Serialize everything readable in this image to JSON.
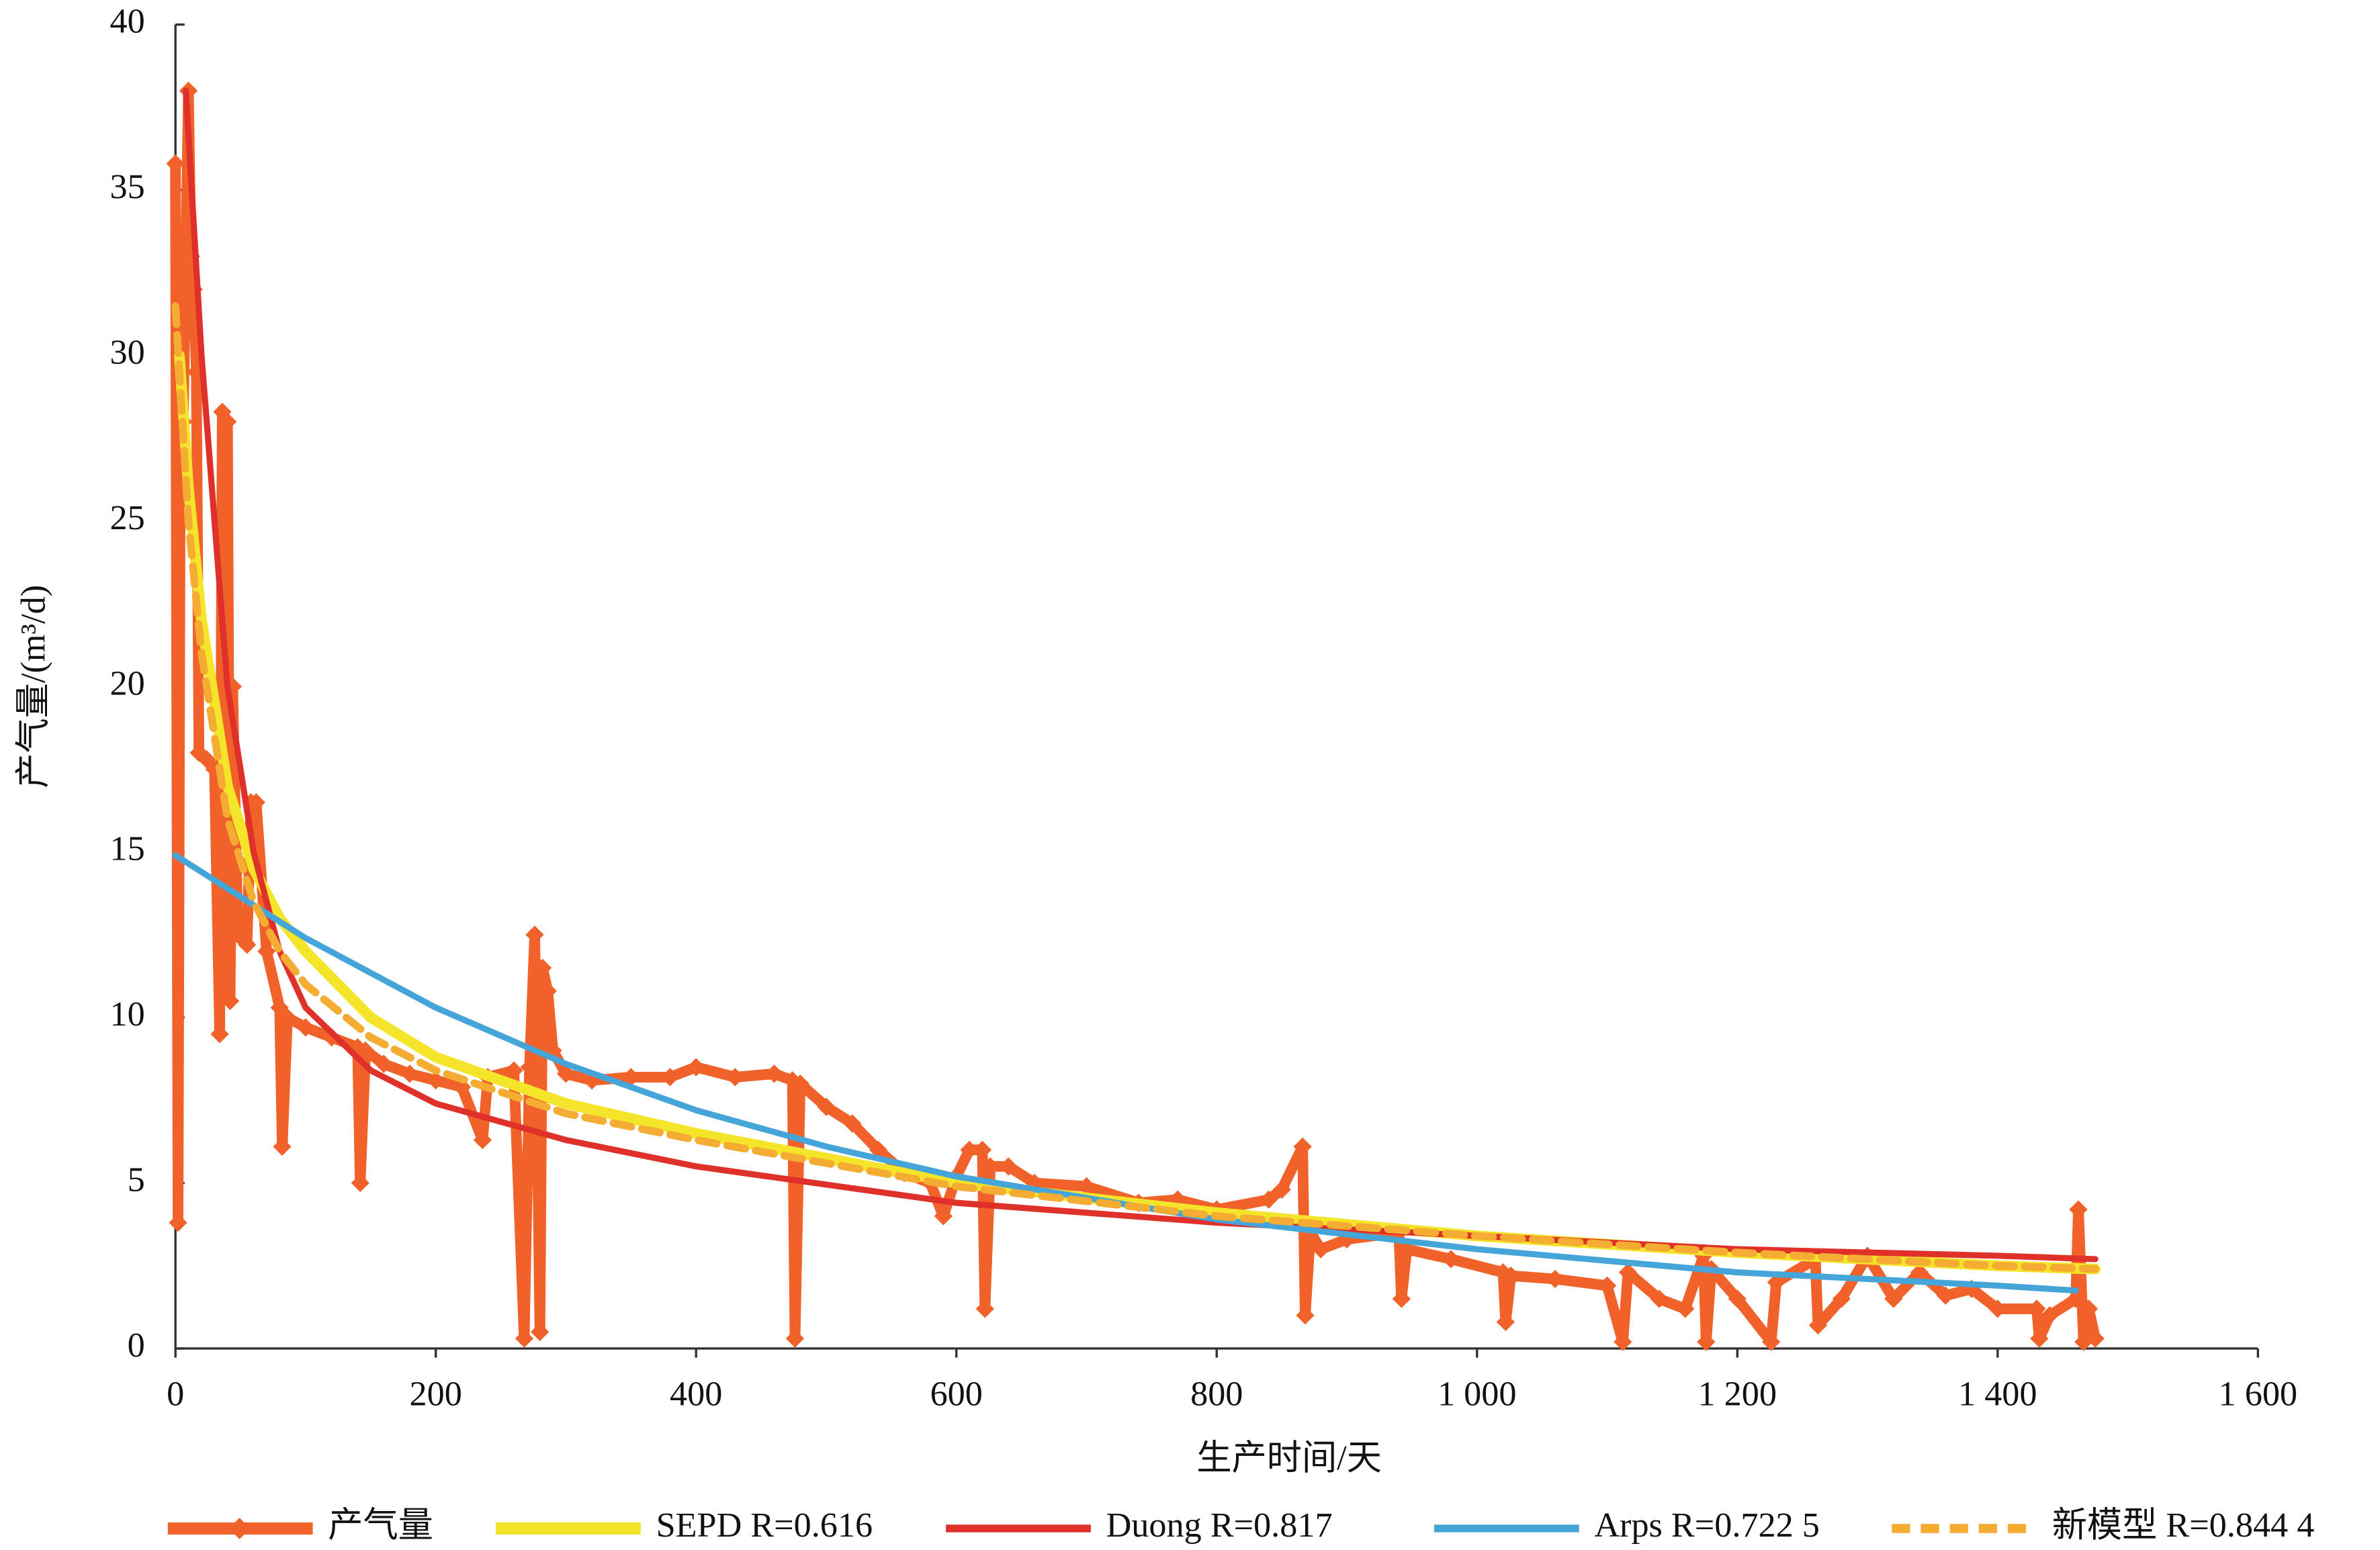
{
  "chart_data": {
    "type": "line",
    "xlabel": "生产时间/天",
    "ylabel": "产气量/(m³/d)",
    "xlim": [
      0,
      1600
    ],
    "ylim": [
      0,
      40
    ],
    "xticks": [
      0,
      200,
      400,
      600,
      800,
      {
        "value": 1000,
        "label": "1 000"
      },
      {
        "value": 1200,
        "label": "1 200"
      },
      {
        "value": 1400,
        "label": "1 400"
      },
      {
        "value": 1600,
        "label": "1 600"
      }
    ],
    "yticks": [
      0,
      5,
      10,
      15,
      20,
      25,
      30,
      35,
      40
    ],
    "legend": "bottom",
    "series": [
      {
        "name": "产气量",
        "color": "#f0622a",
        "marker": "diamond",
        "dash": false,
        "width": 7,
        "x": [
          0,
          2,
          4,
          6,
          10,
          12,
          14,
          16,
          18,
          24,
          30,
          34,
          36,
          40,
          42,
          44,
          48,
          55,
          58,
          62,
          70,
          80,
          82,
          86,
          100,
          120,
          140,
          142,
          146,
          160,
          180,
          200,
          220,
          236,
          240,
          260,
          268,
          272,
          276,
          280,
          282,
          286,
          290,
          300,
          320,
          350,
          380,
          400,
          430,
          460,
          474,
          476,
          480,
          500,
          520,
          540,
          560,
          580,
          590,
          600,
          610,
          620,
          622,
          626,
          640,
          660,
          700,
          740,
          770,
          800,
          840,
          850,
          866,
          868,
          872,
          880,
          900,
          940,
          942,
          946,
          980,
          1020,
          1022,
          1026,
          1060,
          1100,
          1112,
          1116,
          1140,
          1160,
          1174,
          1176,
          1180,
          1200,
          1226,
          1230,
          1260,
          1262,
          1280,
          1300,
          1320,
          1340,
          1360,
          1380,
          1400,
          1430,
          1432,
          1440,
          1460,
          1462,
          1466,
          1470,
          1475
        ],
        "values": [
          35.8,
          3.8,
          31,
          28,
          38,
          33,
          32,
          29.5,
          18,
          17.8,
          17.5,
          9.5,
          28.3,
          28,
          10.5,
          20,
          12.5,
          12.2,
          16.5,
          16.5,
          12,
          10.3,
          6.1,
          10,
          9.7,
          9.4,
          9.1,
          5,
          9,
          8.6,
          8.3,
          8.1,
          7.9,
          6.3,
          8.2,
          8.4,
          0.3,
          8.5,
          12.5,
          0.5,
          11.5,
          10.8,
          9,
          8.3,
          8.1,
          8.2,
          8.2,
          8.5,
          8.2,
          8.3,
          8.1,
          0.3,
          8,
          7.3,
          6.8,
          6,
          5.3,
          5,
          4,
          5.2,
          6,
          6,
          1.2,
          5.5,
          5.5,
          5,
          4.9,
          4.4,
          4.5,
          4.2,
          4.5,
          4.8,
          6.1,
          1,
          3.5,
          3,
          3.3,
          3.5,
          1.5,
          3,
          2.7,
          2.3,
          0.8,
          2.2,
          2.1,
          1.9,
          0.2,
          2.3,
          1.5,
          1.2,
          2.8,
          0.2,
          2.4,
          1.5,
          0.2,
          2,
          2.7,
          0.7,
          1.5,
          2.8,
          1.5,
          2.3,
          1.6,
          1.8,
          1.2,
          1.2,
          0.3,
          1,
          1.5,
          4.2,
          0.2,
          1.2,
          0.3
        ]
      },
      {
        "name": "SEPD R=0.616",
        "color": "#f5e52a",
        "marker": "none",
        "dash": false,
        "width": 7,
        "x": [
          3,
          10,
          20,
          40,
          60,
          80,
          100,
          150,
          200,
          300,
          400,
          600,
          800,
          1000,
          1200,
          1400,
          1475
        ],
        "values": [
          30,
          26,
          22,
          17,
          14.5,
          13,
          12,
          10,
          8.8,
          7.4,
          6.5,
          5,
          4.1,
          3.4,
          2.9,
          2.5,
          2.4
        ]
      },
      {
        "name": "Duong R=0.817",
        "color": "#e0302a",
        "marker": "none",
        "dash": false,
        "width": 4,
        "x": [
          8,
          20,
          40,
          60,
          80,
          100,
          150,
          200,
          300,
          400,
          600,
          800,
          1000,
          1200,
          1400,
          1475
        ],
        "values": [
          38,
          30,
          20,
          15,
          12,
          10.3,
          8.4,
          7.4,
          6.3,
          5.5,
          4.4,
          3.8,
          3.4,
          3,
          2.8,
          2.7
        ]
      },
      {
        "name": "Arps R=0.722 5",
        "color": "#45a5d8",
        "marker": "none",
        "dash": false,
        "width": 4,
        "x": [
          0,
          100,
          200,
          300,
          400,
          500,
          600,
          800,
          1000,
          1200,
          1400,
          1460
        ],
        "values": [
          14.9,
          12.4,
          10.3,
          8.6,
          7.2,
          6.1,
          5.2,
          3.9,
          3,
          2.3,
          1.9,
          1.75
        ]
      },
      {
        "name": "新模型 R=0.844 4",
        "color": "#f5ac33",
        "marker": "none",
        "dash": true,
        "width": 5,
        "x": [
          0,
          10,
          20,
          40,
          60,
          80,
          100,
          150,
          200,
          300,
          400,
          600,
          800,
          1000,
          1200,
          1400,
          1475
        ],
        "values": [
          31.5,
          25,
          21,
          16,
          13.5,
          12,
          11,
          9.4,
          8.4,
          7.1,
          6.3,
          4.9,
          4,
          3.4,
          2.9,
          2.5,
          2.4
        ]
      }
    ]
  }
}
